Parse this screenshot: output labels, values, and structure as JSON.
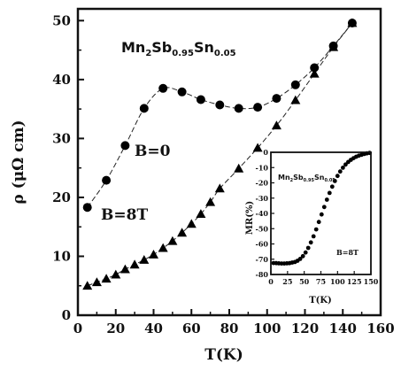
{
  "chart_data": [
    {
      "type": "scatter",
      "xlabel": "T(K)",
      "ylabel": "ρ (μΩ cm)",
      "xlim": [
        0,
        160
      ],
      "ylim": [
        0,
        52
      ],
      "xticks": [
        0,
        20,
        40,
        60,
        80,
        100,
        120,
        140,
        160
      ],
      "yticks": [
        0,
        10,
        20,
        30,
        40,
        50
      ],
      "annotations": {
        "compound": [
          "Mn",
          "2",
          "Sb",
          "0.95",
          "Sn",
          "0.05"
        ],
        "field_zero": "B=0",
        "field_8t": "B=8T"
      },
      "series": [
        {
          "name": "B=0",
          "marker": "circle",
          "color": "#000000",
          "x": [
            5,
            15,
            25,
            35,
            45,
            55,
            65,
            75,
            85,
            95,
            105,
            115,
            125,
            135,
            145
          ],
          "y": [
            18.3,
            22.9,
            28.8,
            35.1,
            38.5,
            37.9,
            36.6,
            35.7,
            35.1,
            35.3,
            36.8,
            39.1,
            42.0,
            45.7,
            49.6
          ]
        },
        {
          "name": "B=8T",
          "marker": "triangle",
          "color": "#000000",
          "x": [
            5,
            10,
            15,
            20,
            25,
            30,
            35,
            40,
            45,
            50,
            55,
            60,
            65,
            70,
            75,
            85,
            95,
            105,
            115,
            125,
            135,
            145
          ],
          "y": [
            5.0,
            5.6,
            6.2,
            6.9,
            7.8,
            8.6,
            9.4,
            10.3,
            11.4,
            12.6,
            14.0,
            15.5,
            17.2,
            19.2,
            21.5,
            24.9,
            28.4,
            32.2,
            36.5,
            41.0,
            45.5,
            49.6
          ]
        }
      ]
    },
    {
      "type": "scatter",
      "inset": true,
      "xlabel": "T(K)",
      "ylabel": "MR(%)",
      "xlim": [
        0,
        150
      ],
      "ylim": [
        -80,
        0
      ],
      "xticks": [
        0,
        25,
        50,
        75,
        100,
        125,
        150
      ],
      "xtick_labels": [
        "0",
        "25",
        "50",
        "75",
        "100",
        "125",
        "150"
      ],
      "yticks": [
        0,
        -10,
        -20,
        -30,
        -40,
        -50,
        -60,
        -70,
        -80
      ],
      "annotations": {
        "compound": [
          "Mn",
          "2",
          "Sb",
          "0.95",
          "Sn",
          "0.05"
        ],
        "field": "B=8T"
      },
      "series": [
        {
          "marker": "circle",
          "color": "#000000",
          "x": [
            4,
            8,
            12,
            16,
            20,
            24,
            28,
            32,
            36,
            40,
            44,
            48,
            52,
            56,
            60,
            64,
            68,
            72,
            76,
            80,
            84,
            88,
            92,
            96,
            100,
            104,
            108,
            112,
            116,
            120,
            124,
            128,
            132,
            136,
            140,
            144,
            148
          ],
          "y": [
            -72.5,
            -72.6,
            -72.7,
            -72.8,
            -72.8,
            -72.7,
            -72.6,
            -72.2,
            -71.8,
            -71.0,
            -69.8,
            -68.0,
            -65.6,
            -62.6,
            -59.0,
            -55.0,
            -50.5,
            -45.6,
            -40.7,
            -35.8,
            -31.0,
            -26.6,
            -22.5,
            -18.8,
            -15.5,
            -12.6,
            -10.1,
            -8.0,
            -6.3,
            -4.9,
            -3.8,
            -2.9,
            -2.2,
            -1.6,
            -1.1,
            -0.7,
            -0.4
          ]
        }
      ]
    }
  ]
}
